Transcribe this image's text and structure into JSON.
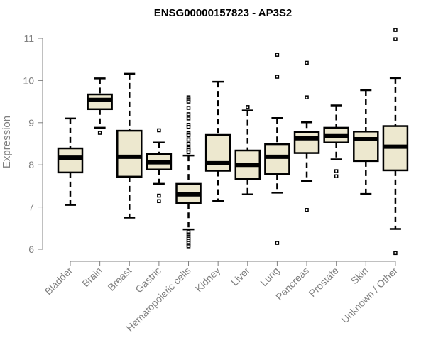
{
  "chart_data": {
    "type": "boxplot",
    "title": "ENSG00000157823 - AP3S2",
    "xlabel": "",
    "ylabel": "Expression",
    "ylim": [
      5.9,
      11.3
    ],
    "yticks": [
      6,
      7,
      8,
      9,
      10,
      11
    ],
    "colors": {
      "box_fill": "#ede8cf",
      "stroke": "#000000",
      "axis": "#808080",
      "label": "#808080"
    },
    "categories": [
      "Bladder",
      "Brain",
      "Breast",
      "Gastric",
      "Hematopoietic cells",
      "Kidney",
      "Liver",
      "Lung",
      "Pancreas",
      "Prostate",
      "Skin",
      "Unknown / Other"
    ],
    "boxes": [
      {
        "lower": 7.05,
        "q1": 7.82,
        "median": 8.17,
        "q3": 8.39,
        "upper": 9.1,
        "outliers": []
      },
      {
        "lower": 8.88,
        "q1": 9.32,
        "median": 9.54,
        "q3": 9.67,
        "upper": 10.05,
        "outliers": [
          8.76
        ]
      },
      {
        "lower": 6.75,
        "q1": 7.72,
        "median": 8.19,
        "q3": 8.81,
        "upper": 10.16,
        "outliers": []
      },
      {
        "lower": 7.55,
        "q1": 7.89,
        "median": 8.06,
        "q3": 8.26,
        "upper": 8.53,
        "outliers": [
          8.82,
          7.27,
          7.14
        ]
      },
      {
        "lower": 6.47,
        "q1": 7.09,
        "median": 7.3,
        "q3": 7.55,
        "upper": 8.22,
        "outliers": [
          9.6,
          9.55,
          9.5,
          9.35,
          9.2,
          9.1,
          8.95,
          8.9,
          8.75,
          8.7,
          8.6,
          8.5,
          8.4,
          8.35,
          8.3,
          6.4,
          6.35,
          6.3,
          6.25,
          6.2,
          6.15,
          6.1,
          6.07
        ]
      },
      {
        "lower": 7.15,
        "q1": 7.86,
        "median": 8.04,
        "q3": 8.71,
        "upper": 9.97,
        "outliers": []
      },
      {
        "lower": 7.3,
        "q1": 7.67,
        "median": 8.0,
        "q3": 8.34,
        "upper": 9.29,
        "outliers": [
          9.37
        ]
      },
      {
        "lower": 7.34,
        "q1": 7.78,
        "median": 8.19,
        "q3": 8.49,
        "upper": 9.11,
        "outliers": [
          10.61,
          10.09,
          6.15
        ]
      },
      {
        "lower": 7.62,
        "q1": 8.28,
        "median": 8.63,
        "q3": 8.78,
        "upper": 9.01,
        "outliers": [
          10.42,
          9.6,
          6.93
        ]
      },
      {
        "lower": 8.13,
        "q1": 8.53,
        "median": 8.68,
        "q3": 8.88,
        "upper": 9.41,
        "outliers": [
          7.85,
          7.73
        ]
      },
      {
        "lower": 7.31,
        "q1": 8.09,
        "median": 8.61,
        "q3": 8.79,
        "upper": 9.77,
        "outliers": []
      },
      {
        "lower": 6.48,
        "q1": 7.87,
        "median": 8.43,
        "q3": 8.92,
        "upper": 10.06,
        "outliers": [
          11.2,
          10.98,
          5.91
        ]
      }
    ]
  }
}
